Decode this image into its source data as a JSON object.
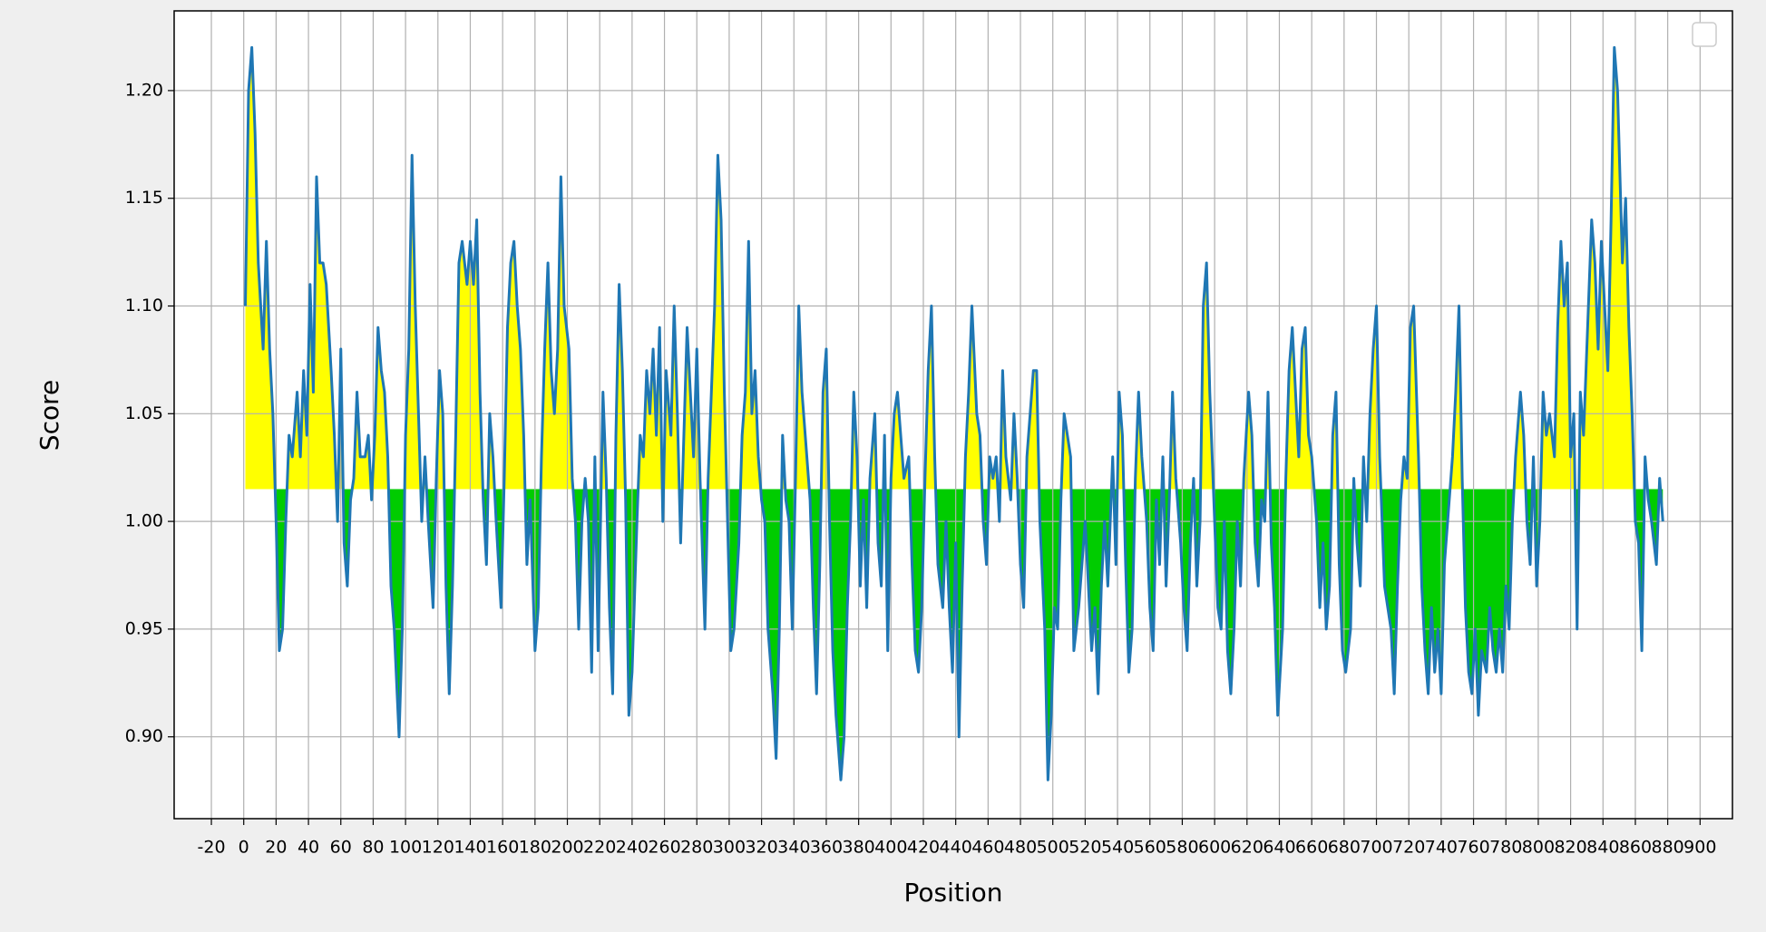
{
  "chart_data": {
    "type": "line",
    "xlabel": "Position",
    "ylabel": "Score",
    "color": "#1f77b4",
    "fill_above_color": "#ffff00",
    "fill_below_color": "#00cc00",
    "threshold": 1.015,
    "grid": true,
    "legend": "upper right",
    "xlim": [
      -43,
      920
    ],
    "ylim": [
      0.862,
      1.237
    ],
    "xticks": [
      -20,
      0,
      20,
      40,
      60,
      80,
      100,
      120,
      140,
      160,
      180,
      200,
      220,
      240,
      260,
      280,
      300,
      320,
      340,
      360,
      380,
      400,
      420,
      440,
      460,
      480,
      500,
      520,
      540,
      560,
      580,
      600,
      620,
      640,
      660,
      680,
      700,
      720,
      740,
      760,
      780,
      800,
      820,
      840,
      860,
      880,
      900
    ],
    "yticks": [
      {
        "value": 0.9,
        "label": "0.90"
      },
      0.95,
      {
        "value": 1.0,
        "label": "1.00"
      },
      1.05,
      {
        "value": 1.1,
        "label": "1.10"
      },
      1.15,
      {
        "value": 1.2,
        "label": "1.20"
      }
    ],
    "x": [
      1,
      3,
      5,
      7,
      9,
      12,
      14,
      16,
      18,
      20,
      22,
      24,
      26,
      28,
      30,
      33,
      35,
      37,
      39,
      41,
      43,
      45,
      47,
      49,
      51,
      54,
      56,
      58,
      60,
      62,
      64,
      66,
      68,
      70,
      72,
      75,
      77,
      79,
      81,
      83,
      85,
      87,
      89,
      91,
      93,
      96,
      98,
      100,
      102,
      104,
      106,
      108,
      110,
      112,
      114,
      117,
      119,
      121,
      123,
      125,
      127,
      129,
      131,
      133,
      135,
      138,
      140,
      142,
      144,
      146,
      148,
      150,
      152,
      154,
      156,
      159,
      161,
      163,
      165,
      167,
      169,
      171,
      173,
      175,
      177,
      180,
      182,
      184,
      186,
      188,
      190,
      192,
      194,
      196,
      198,
      201,
      203,
      205,
      207,
      209,
      211,
      213,
      215,
      217,
      219,
      222,
      224,
      226,
      228,
      230,
      232,
      234,
      236,
      238,
      240,
      243,
      245,
      247,
      249,
      251,
      253,
      255,
      257,
      259,
      261,
      264,
      266,
      268,
      270,
      272,
      274,
      276,
      278,
      280,
      282,
      285,
      287,
      289,
      291,
      293,
      295,
      297,
      299,
      301,
      303,
      306,
      308,
      310,
      312,
      314,
      316,
      318,
      320,
      322,
      324,
      327,
      329,
      331,
      333,
      335,
      337,
      339,
      341,
      343,
      345,
      348,
      350,
      352,
      354,
      356,
      358,
      360,
      362,
      364,
      366,
      369,
      371,
      373,
      375,
      377,
      379,
      381,
      383,
      385,
      387,
      390,
      392,
      394,
      396,
      398,
      400,
      402,
      404,
      406,
      408,
      411,
      413,
      415,
      417,
      419,
      421,
      423,
      425,
      427,
      429,
      432,
      434,
      436,
      438,
      440,
      442,
      444,
      446,
      448,
      450,
      453,
      455,
      457,
      459,
      461,
      463,
      465,
      467,
      469,
      471,
      474,
      476,
      478,
      480,
      482,
      484,
      486,
      488,
      490,
      492,
      495,
      497,
      499,
      501,
      503,
      505,
      507,
      509,
      511,
      513,
      516,
      518,
      520,
      522,
      524,
      526,
      528,
      530,
      532,
      534,
      537,
      539,
      541,
      543,
      545,
      547,
      549,
      551,
      553,
      555,
      558,
      560,
      562,
      564,
      566,
      568,
      570,
      572,
      574,
      576,
      579,
      581,
      583,
      585,
      587,
      589,
      591,
      593,
      595,
      597,
      600,
      602,
      604,
      606,
      608,
      610,
      612,
      614,
      616,
      618,
      621,
      623,
      625,
      627,
      629,
      631,
      633,
      635,
      637,
      639,
      642,
      644,
      646,
      648,
      650,
      652,
      654,
      656,
      658,
      660,
      663,
      665,
      667,
      669,
      671,
      673,
      675,
      677,
      679,
      681,
      684,
      686,
      688,
      690,
      692,
      694,
      696,
      698,
      700,
      702,
      705,
      707,
      709,
      711,
      713,
      715,
      717,
      719,
      721,
      723,
      726,
      728,
      730,
      732,
      734,
      736,
      738,
      740,
      742,
      744,
      747,
      749,
      751,
      753,
      755,
      757,
      759,
      761,
      763,
      765,
      768,
      770,
      772,
      774,
      776,
      778,
      780,
      782,
      784,
      786,
      789,
      791,
      793,
      795,
      797,
      799,
      801,
      803,
      805,
      807,
      810,
      812,
      814,
      816,
      818,
      820,
      822,
      824,
      826,
      828,
      831,
      833,
      835,
      837,
      839,
      841,
      843,
      845,
      847,
      849,
      852,
      854,
      856,
      858,
      860,
      862,
      864,
      866,
      868,
      870,
      873,
      875,
      877
    ],
    "values": [
      1.1,
      1.2,
      1.22,
      1.18,
      1.12,
      1.08,
      1.13,
      1.08,
      1.05,
      1.0,
      0.94,
      0.95,
      1.0,
      1.04,
      1.03,
      1.06,
      1.03,
      1.07,
      1.04,
      1.11,
      1.06,
      1.16,
      1.12,
      1.12,
      1.11,
      1.07,
      1.04,
      1.0,
      1.08,
      0.99,
      0.97,
      1.01,
      1.02,
      1.06,
      1.03,
      1.03,
      1.04,
      1.01,
      1.04,
      1.09,
      1.07,
      1.06,
      1.03,
      0.97,
      0.95,
      0.9,
      0.95,
      1.04,
      1.08,
      1.17,
      1.1,
      1.05,
      1.0,
      1.03,
      1.0,
      0.96,
      1.02,
      1.07,
      1.05,
      0.97,
      0.92,
      0.97,
      1.04,
      1.12,
      1.13,
      1.11,
      1.13,
      1.11,
      1.14,
      1.06,
      1.01,
      0.98,
      1.05,
      1.03,
      1.0,
      0.96,
      1.02,
      1.09,
      1.12,
      1.13,
      1.1,
      1.08,
      1.04,
      0.98,
      1.01,
      0.94,
      0.96,
      1.03,
      1.08,
      1.12,
      1.07,
      1.05,
      1.08,
      1.16,
      1.1,
      1.08,
      1.02,
      1.0,
      0.95,
      1.0,
      1.02,
      1.0,
      0.93,
      1.03,
      0.94,
      1.06,
      1.02,
      0.96,
      0.92,
      1.04,
      1.11,
      1.07,
      1.01,
      0.91,
      0.93,
      1.0,
      1.04,
      1.03,
      1.07,
      1.05,
      1.08,
      1.04,
      1.09,
      1.0,
      1.07,
      1.04,
      1.1,
      1.05,
      0.99,
      1.04,
      1.09,
      1.06,
      1.03,
      1.08,
      1.02,
      0.95,
      1.02,
      1.06,
      1.1,
      1.17,
      1.14,
      1.06,
      1.0,
      0.94,
      0.95,
      0.99,
      1.04,
      1.06,
      1.13,
      1.05,
      1.07,
      1.03,
      1.01,
      1.0,
      0.95,
      0.92,
      0.89,
      0.95,
      1.04,
      1.01,
      1.0,
      0.95,
      1.02,
      1.1,
      1.06,
      1.03,
      1.01,
      0.96,
      0.92,
      0.98,
      1.06,
      1.08,
      1.0,
      0.94,
      0.91,
      0.88,
      0.9,
      0.96,
      1.0,
      1.06,
      1.03,
      0.97,
      1.01,
      0.96,
      1.02,
      1.05,
      0.99,
      0.97,
      1.04,
      0.94,
      1.02,
      1.05,
      1.06,
      1.04,
      1.02,
      1.03,
      0.98,
      0.94,
      0.93,
      0.96,
      1.02,
      1.07,
      1.1,
      1.03,
      0.98,
      0.96,
      1.0,
      0.96,
      0.93,
      0.99,
      0.9,
      0.97,
      1.03,
      1.06,
      1.1,
      1.05,
      1.04,
      1.0,
      0.98,
      1.03,
      1.02,
      1.03,
      1.0,
      1.07,
      1.03,
      1.01,
      1.05,
      1.02,
      0.98,
      0.96,
      1.03,
      1.05,
      1.07,
      1.07,
      1.0,
      0.95,
      0.88,
      0.91,
      0.96,
      0.95,
      1.01,
      1.05,
      1.04,
      1.03,
      0.94,
      0.96,
      0.98,
      1.0,
      0.97,
      0.94,
      0.96,
      0.92,
      0.97,
      1.0,
      0.97,
      1.03,
      0.98,
      1.06,
      1.04,
      0.98,
      0.93,
      0.95,
      1.02,
      1.06,
      1.03,
      1.0,
      0.96,
      0.94,
      1.01,
      0.98,
      1.03,
      0.97,
      1.01,
      1.06,
      1.02,
      0.99,
      0.96,
      0.94,
      0.99,
      1.02,
      0.97,
      1.0,
      1.1,
      1.12,
      1.06,
      1.0,
      0.96,
      0.95,
      1.0,
      0.94,
      0.92,
      0.95,
      1.0,
      0.97,
      1.02,
      1.06,
      1.04,
      0.99,
      0.97,
      1.01,
      1.0,
      1.06,
      0.99,
      0.96,
      0.91,
      0.95,
      1.02,
      1.07,
      1.09,
      1.06,
      1.03,
      1.08,
      1.09,
      1.04,
      1.03,
      1.0,
      0.96,
      0.99,
      0.95,
      0.97,
      1.04,
      1.06,
      0.98,
      0.94,
      0.93,
      0.95,
      1.02,
      0.99,
      0.97,
      1.03,
      1.0,
      1.05,
      1.08,
      1.1,
      1.03,
      0.97,
      0.96,
      0.95,
      0.92,
      0.97,
      1.01,
      1.03,
      1.02,
      1.09,
      1.1,
      1.03,
      0.97,
      0.94,
      0.92,
      0.96,
      0.93,
      0.95,
      0.92,
      0.98,
      1.0,
      1.03,
      1.06,
      1.1,
      1.02,
      0.96,
      0.93,
      0.92,
      0.95,
      0.91,
      0.94,
      0.93,
      0.96,
      0.94,
      0.93,
      0.95,
      0.93,
      0.97,
      0.95,
      1.0,
      1.03,
      1.06,
      1.04,
      1.0,
      0.98,
      1.03,
      0.97,
      1.0,
      1.06,
      1.04,
      1.05,
      1.03,
      1.09,
      1.13,
      1.1,
      1.12,
      1.03,
      1.05,
      0.95,
      1.06,
      1.04,
      1.1,
      1.14,
      1.12,
      1.08,
      1.13,
      1.1,
      1.07,
      1.14,
      1.22,
      1.2,
      1.12,
      1.15,
      1.09,
      1.05,
      1.0,
      0.99,
      0.94,
      1.03,
      1.01,
      1.0,
      0.98,
      1.02,
      1.0
    ]
  }
}
